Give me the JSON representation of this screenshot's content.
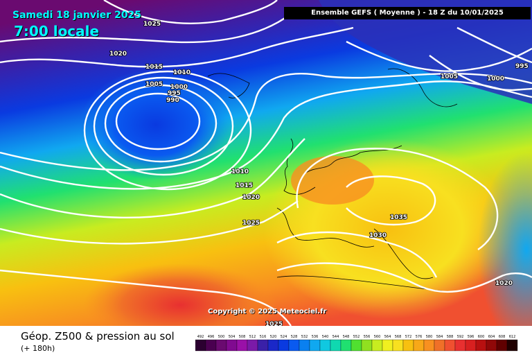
{
  "header": {
    "date": "Samedi 18 janvier 2025",
    "local_time": "7:00 locale",
    "run_info": "Ensemble GEFS  ( Moyenne )  -  18 Z du 10/01/2025"
  },
  "copyright": "Copyright © 2025 Meteociel.fr",
  "footer": {
    "title": "Géop. Z500 & pression au sol",
    "subtitle": "(+ 180h)"
  },
  "isobar_labels": [
    {
      "text": "1025"
    },
    {
      "text": "1020"
    },
    {
      "text": "1015"
    },
    {
      "text": "1010"
    },
    {
      "text": "1005"
    },
    {
      "text": "1000"
    },
    {
      "text": "995"
    },
    {
      "text": "990"
    },
    {
      "text": "1010"
    },
    {
      "text": "1015"
    },
    {
      "text": "1020"
    },
    {
      "text": "1025"
    },
    {
      "text": "1035"
    },
    {
      "text": "1030"
    },
    {
      "text": "1020"
    },
    {
      "text": "1025"
    },
    {
      "text": "1005"
    },
    {
      "text": "1000"
    },
    {
      "text": "995"
    }
  ],
  "legend": {
    "values": [
      "492",
      "496",
      "500",
      "504",
      "508",
      "512",
      "516",
      "520",
      "524",
      "528",
      "532",
      "536",
      "540",
      "544",
      "548",
      "552",
      "556",
      "560",
      "564",
      "568",
      "572",
      "576",
      "580",
      "584",
      "588",
      "592",
      "596",
      "600",
      "604",
      "608",
      "612"
    ],
    "colors": [
      "#2b0030",
      "#4a0050",
      "#6a0a70",
      "#800a90",
      "#9a10a8",
      "#7a1aa8",
      "#3a20a8",
      "#1a28c8",
      "#0a3ae0",
      "#0a5af0",
      "#0a80f0",
      "#10a8f0",
      "#10c8e0",
      "#10d8b0",
      "#20e070",
      "#50e030",
      "#90e020",
      "#c8ec20",
      "#f0f020",
      "#f8e020",
      "#f8c010",
      "#f8a818",
      "#f89020",
      "#f07028",
      "#f05030",
      "#e83030",
      "#d82020",
      "#b81010",
      "#900808",
      "#600000",
      "#200000"
    ]
  }
}
